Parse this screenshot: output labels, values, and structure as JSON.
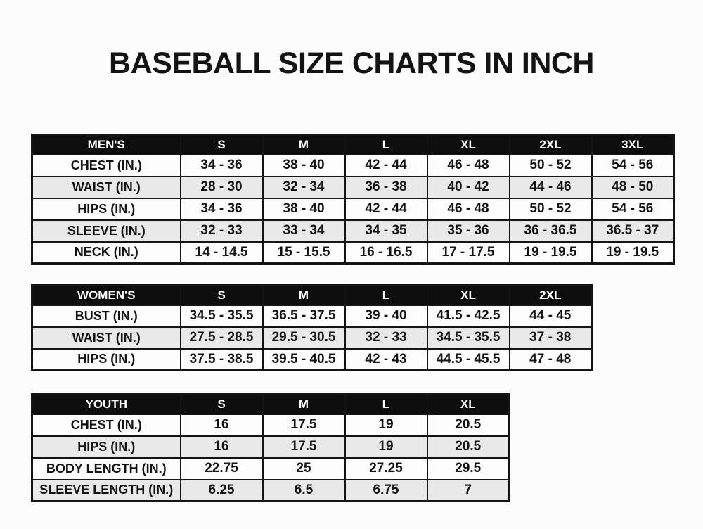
{
  "title": "BASEBALL SIZE CHARTS IN INCH",
  "colors": {
    "header_bg": "#0e0e0e",
    "header_text": "#ffffff",
    "row_stripe": "#e9e9e9",
    "row_plain": "#fdfdfd",
    "border": "#141414",
    "text": "#131313",
    "page_bg": "#fcfcfc"
  },
  "chart_data": [
    {
      "type": "table",
      "id": "mens",
      "name": "Men's baseball sizes (inches)",
      "columns": [
        "MEN'S",
        "S",
        "M",
        "L",
        "XL",
        "2XL",
        "3XL"
      ],
      "rows": [
        [
          "CHEST (IN.)",
          "34 - 36",
          "38 - 40",
          "42 - 44",
          "46 - 48",
          "50 - 52",
          "54 - 56"
        ],
        [
          "WAIST (IN.)",
          "28 - 30",
          "32 - 34",
          "36 - 38",
          "40 - 42",
          "44 - 46",
          "48 - 50"
        ],
        [
          "HIPS (IN.)",
          "34 - 36",
          "38 - 40",
          "42 - 44",
          "46 - 48",
          "50 - 52",
          "54 - 56"
        ],
        [
          "SLEEVE (IN.)",
          "32 - 33",
          "33 - 34",
          "34 - 35",
          "35 - 36",
          "36 - 36.5",
          "36.5 - 37"
        ],
        [
          "NECK (IN.)",
          "14 - 14.5",
          "15 - 15.5",
          "16 - 16.5",
          "17 - 17.5",
          "19 - 19.5",
          "19 - 19.5"
        ]
      ]
    },
    {
      "type": "table",
      "id": "womens",
      "name": "Women's baseball sizes (inches)",
      "columns": [
        "WOMEN'S",
        "S",
        "M",
        "L",
        "XL",
        "2XL"
      ],
      "rows": [
        [
          "BUST (IN.)",
          "34.5 - 35.5",
          "36.5 - 37.5",
          "39 - 40",
          "41.5 - 42.5",
          "44 - 45"
        ],
        [
          "WAIST (IN.)",
          "27.5 - 28.5",
          "29.5 - 30.5",
          "32 - 33",
          "34.5 - 35.5",
          "37 - 38"
        ],
        [
          "HIPS (IN.)",
          "37.5 - 38.5",
          "39.5 - 40.5",
          "42 - 43",
          "44.5 - 45.5",
          "47 - 48"
        ]
      ]
    },
    {
      "type": "table",
      "id": "youth",
      "name": "Youth baseball sizes (inches)",
      "columns": [
        "YOUTH",
        "S",
        "M",
        "L",
        "XL"
      ],
      "rows": [
        [
          "CHEST (IN.)",
          "16",
          "17.5",
          "19",
          "20.5"
        ],
        [
          "HIPS (IN.)",
          "16",
          "17.5",
          "19",
          "20.5"
        ],
        [
          "BODY LENGTH (IN.)",
          "22.75",
          "25",
          "27.25",
          "29.5"
        ],
        [
          "SLEEVE LENGTH (IN.)",
          "6.25",
          "6.5",
          "6.75",
          "7"
        ]
      ]
    }
  ]
}
